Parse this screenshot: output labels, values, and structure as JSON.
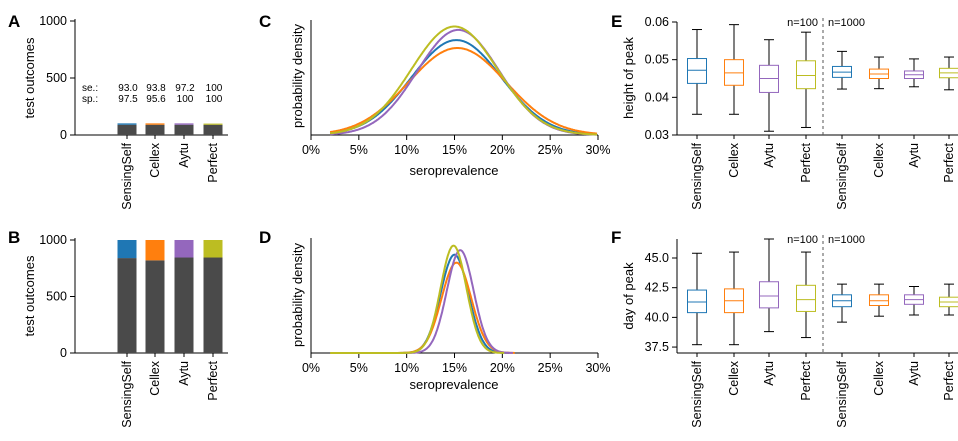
{
  "colors": {
    "SensingSelf": "#1f77b4",
    "Cellex": "#ff7f0e",
    "Aytu": "#9467bd",
    "Perfect": "#bcbd22",
    "negative": "#4a4a4a",
    "axis": "#000000"
  },
  "chart_data": [
    {
      "panel": "A",
      "type": "bar",
      "stacked": true,
      "ylabel": "test outcomes",
      "ylim": [
        0,
        1000
      ],
      "yticks": [
        "0",
        "500",
        "1000"
      ],
      "categories": [
        "SensingSelf",
        "Cellex",
        "Aytu",
        "Perfect"
      ],
      "series": [
        {
          "values": [
            90,
            90,
            90,
            90
          ]
        },
        {
          "values": [
            12,
            12,
            12,
            10
          ]
        }
      ],
      "annotations": {
        "se_label": "se.:",
        "sp_label": "sp.:",
        "se": [
          "93.0",
          "93.8",
          "97.2",
          "100"
        ],
        "sp": [
          "97.5",
          "95.6",
          "100",
          "100"
        ]
      }
    },
    {
      "panel": "B",
      "type": "bar",
      "stacked": true,
      "ylabel": "test outcomes",
      "ylim": [
        0,
        1000
      ],
      "yticks": [
        "0",
        "500",
        "1000"
      ],
      "categories": [
        "SensingSelf",
        "Cellex",
        "Aytu",
        "Perfect"
      ],
      "series": [
        {
          "values": [
            840,
            820,
            845,
            845
          ]
        },
        {
          "values": [
            160,
            180,
            155,
            155
          ]
        }
      ]
    },
    {
      "panel": "C",
      "type": "line",
      "ylabel": "probability density",
      "xlabel": "seroprevalence",
      "xticks": [
        "0%",
        "5%",
        "10%",
        "15%",
        "20%",
        "25%",
        "30%"
      ],
      "xlim": [
        0,
        30
      ],
      "series_params": [
        {
          "mu": 15.2,
          "sigma": 4.7,
          "peak": 0.84
        },
        {
          "mu": 15.3,
          "sigma": 5.1,
          "peak": 0.77
        },
        {
          "mu": 15.4,
          "sigma": 4.3,
          "peak": 0.93
        },
        {
          "mu": 15.0,
          "sigma": 4.5,
          "peak": 0.96
        }
      ]
    },
    {
      "panel": "D",
      "type": "line",
      "ylabel": "probability density",
      "xlabel": "seroprevalence",
      "xticks": [
        "0%",
        "5%",
        "10%",
        "15%",
        "20%",
        "25%",
        "30%"
      ],
      "xlim": [
        0,
        30
      ],
      "series_params": [
        {
          "mu": 15.0,
          "sigma": 1.45,
          "peak": 0.87
        },
        {
          "mu": 15.2,
          "sigma": 1.55,
          "peak": 0.8
        },
        {
          "mu": 15.6,
          "sigma": 1.4,
          "peak": 0.91
        },
        {
          "mu": 14.9,
          "sigma": 1.35,
          "peak": 0.95
        }
      ]
    },
    {
      "panel": "E",
      "type": "box",
      "ylabel": "height of peak",
      "ylim": [
        0.03,
        0.06
      ],
      "yticks": [
        "0.03",
        "0.04",
        "0.05",
        "0.06"
      ],
      "categories": [
        "SensingSelf",
        "Cellex",
        "Aytu",
        "Perfect",
        "SensingSelf",
        "Cellex",
        "Aytu",
        "Perfect"
      ],
      "group_labels": [
        "n=100",
        "n=1000"
      ],
      "boxes": [
        {
          "min": 0.0355,
          "q1": 0.0437,
          "med": 0.0472,
          "q3": 0.0503,
          "max": 0.058
        },
        {
          "min": 0.0355,
          "q1": 0.0432,
          "med": 0.0465,
          "q3": 0.05,
          "max": 0.0593
        },
        {
          "min": 0.031,
          "q1": 0.0413,
          "med": 0.045,
          "q3": 0.0485,
          "max": 0.0553
        },
        {
          "min": 0.032,
          "q1": 0.0423,
          "med": 0.0458,
          "q3": 0.0497,
          "max": 0.0573
        },
        {
          "min": 0.0422,
          "q1": 0.0453,
          "med": 0.0467,
          "q3": 0.0482,
          "max": 0.0522
        },
        {
          "min": 0.0423,
          "q1": 0.045,
          "med": 0.0462,
          "q3": 0.0475,
          "max": 0.0507
        },
        {
          "min": 0.0428,
          "q1": 0.045,
          "med": 0.046,
          "q3": 0.047,
          "max": 0.0502
        },
        {
          "min": 0.042,
          "q1": 0.0452,
          "med": 0.0465,
          "q3": 0.0477,
          "max": 0.0507
        }
      ]
    },
    {
      "panel": "F",
      "type": "box",
      "ylabel": "day of peak",
      "ylim": [
        37.0,
        46.6
      ],
      "yticks": [
        "37.5",
        "40.0",
        "42.5",
        "45.0"
      ],
      "categories": [
        "SensingSelf",
        "Cellex",
        "Aytu",
        "Perfect",
        "SensingSelf",
        "Cellex",
        "Aytu",
        "Perfect"
      ],
      "group_labels": [
        "n=100",
        "n=1000"
      ],
      "boxes": [
        {
          "min": 37.7,
          "q1": 40.4,
          "med": 41.3,
          "q3": 42.3,
          "max": 45.4
        },
        {
          "min": 37.7,
          "q1": 40.4,
          "med": 41.4,
          "q3": 42.4,
          "max": 45.5
        },
        {
          "min": 38.8,
          "q1": 40.8,
          "med": 41.8,
          "q3": 43.0,
          "max": 46.6
        },
        {
          "min": 38.3,
          "q1": 40.5,
          "med": 41.5,
          "q3": 42.7,
          "max": 45.5
        },
        {
          "min": 39.6,
          "q1": 40.9,
          "med": 41.4,
          "q3": 41.9,
          "max": 42.8
        },
        {
          "min": 40.1,
          "q1": 41.0,
          "med": 41.4,
          "q3": 41.9,
          "max": 42.8
        },
        {
          "min": 40.2,
          "q1": 41.1,
          "med": 41.5,
          "q3": 41.9,
          "max": 42.6
        },
        {
          "min": 40.2,
          "q1": 40.9,
          "med": 41.3,
          "q3": 41.7,
          "max": 42.8
        }
      ]
    }
  ]
}
